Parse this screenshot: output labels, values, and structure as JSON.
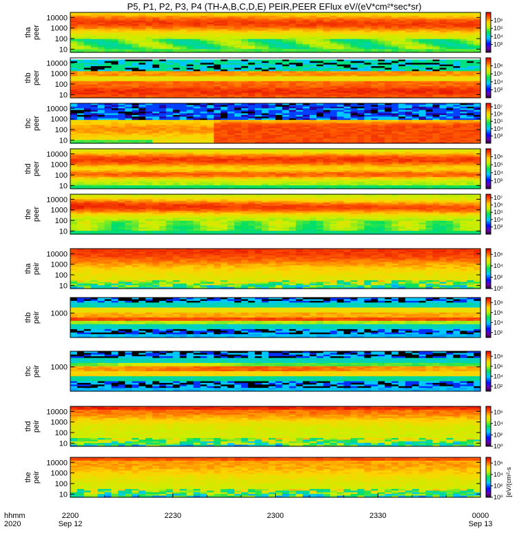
{
  "chart_data": {
    "type": "heatmap",
    "title": "P5, P1, P2, P3, P4 (TH-A,B,C,D,E) PEIR,PEER EFlux eV/(eV*cm²*sec*sr)",
    "x_tick_labels": [
      {
        "top": "2200",
        "bottom": "Sep 12"
      },
      {
        "top": "2230",
        "bottom": ""
      },
      {
        "top": "2300",
        "bottom": ""
      },
      {
        "top": "2330",
        "bottom": ""
      },
      {
        "top": "0000",
        "bottom": "Sep 13"
      }
    ],
    "x_axis_label": {
      "line1": "hhmm",
      "line2": "2020"
    },
    "y_scale": "log",
    "colorbar_scale": "log",
    "colorbar_colormap": "rainbow (purple-blue-cyan-green-yellow-orange-red)",
    "colorbar_unit_label": "[eV/(cm²-s",
    "panels": [
      {
        "probe": "tha",
        "line1": "tha",
        "line2": "peer",
        "y_ticks": [
          "10",
          "100",
          "1000",
          "10000"
        ],
        "y_range": [
          5,
          30000
        ],
        "cb_ticks": [
          "10³",
          "10⁴",
          "10⁵",
          "10⁶"
        ],
        "cb_range": [
          100,
          10000000
        ],
        "pattern": "peer_a"
      },
      {
        "probe": "thb",
        "line1": "thb",
        "line2": "peer",
        "y_ticks": [
          "10",
          "100",
          "1000",
          "10000"
        ],
        "y_range": [
          5,
          30000
        ],
        "cb_ticks": [
          "10³",
          "10⁴",
          "10⁵",
          "10⁶"
        ],
        "cb_range": [
          100,
          10000000
        ],
        "pattern": "peer_b"
      },
      {
        "probe": "thc",
        "line1": "thc",
        "line2": "peer",
        "y_ticks": [
          "10",
          "100",
          "1000",
          "10000"
        ],
        "y_range": [
          5,
          30000
        ],
        "cb_ticks": [
          "10³",
          "10⁴",
          "10⁵",
          "10⁶",
          "10⁷"
        ],
        "cb_range": [
          100,
          30000000
        ],
        "pattern": "peer_c"
      },
      {
        "probe": "thd",
        "line1": "thd",
        "line2": "peer",
        "y_ticks": [
          "10",
          "100",
          "1000",
          "10000"
        ],
        "y_range": [
          5,
          30000
        ],
        "cb_ticks": [
          "10³",
          "10⁴",
          "10⁵",
          "10⁶"
        ],
        "cb_range": [
          100,
          10000000
        ],
        "pattern": "peer_d"
      },
      {
        "probe": "the",
        "line1": "the",
        "line2": "peer",
        "y_ticks": [
          "10",
          "100",
          "1000",
          "10000"
        ],
        "y_range": [
          5,
          30000
        ],
        "cb_ticks": [
          "10³",
          "10⁴",
          "10⁵",
          "10⁶",
          "10⁷"
        ],
        "cb_range": [
          100,
          30000000
        ],
        "pattern": "peer_e"
      },
      {
        "probe": "tha",
        "line1": "tha",
        "line2": "peir",
        "y_ticks": [
          "10",
          "100",
          "1000",
          "10000"
        ],
        "y_range": [
          5,
          30000
        ],
        "cb_ticks": [
          "10⁰",
          "10²",
          "10⁴",
          "10⁶"
        ],
        "cb_range": [
          1,
          10000000
        ],
        "pattern": "peir_a"
      },
      {
        "probe": "thb",
        "line1": "thb",
        "line2": "peir",
        "y_ticks": [
          "1000"
        ],
        "y_range": [
          5,
          30000
        ],
        "cb_ticks": [
          "10²",
          "10⁴",
          "10⁶",
          "10⁸"
        ],
        "cb_range": [
          10,
          1000000000
        ],
        "pattern": "peir_b"
      },
      {
        "probe": "thc",
        "line1": "thc",
        "line2": "peir",
        "y_ticks": [
          "1000"
        ],
        "y_range": [
          5,
          30000
        ],
        "cb_ticks": [
          "10²",
          "10⁴",
          "10⁶",
          "10⁸"
        ],
        "cb_range": [
          10,
          1000000000
        ],
        "pattern": "peir_c"
      },
      {
        "probe": "thd",
        "line1": "thd",
        "line2": "peir",
        "y_ticks": [
          "10",
          "100",
          "1000",
          "10000"
        ],
        "y_range": [
          5,
          30000
        ],
        "cb_ticks": [
          "10⁰",
          "10²",
          "10⁴",
          "10⁶"
        ],
        "cb_range": [
          1,
          10000000
        ],
        "pattern": "peir_d"
      },
      {
        "probe": "the",
        "line1": "the",
        "line2": "peir",
        "y_ticks": [
          "10",
          "100",
          "1000",
          "10000"
        ],
        "y_range": [
          5,
          30000
        ],
        "cb_ticks": [
          "10⁰",
          "10²",
          "10⁴",
          "10⁶"
        ],
        "cb_range": [
          1,
          10000000
        ],
        "pattern": "peir_e"
      }
    ]
  }
}
